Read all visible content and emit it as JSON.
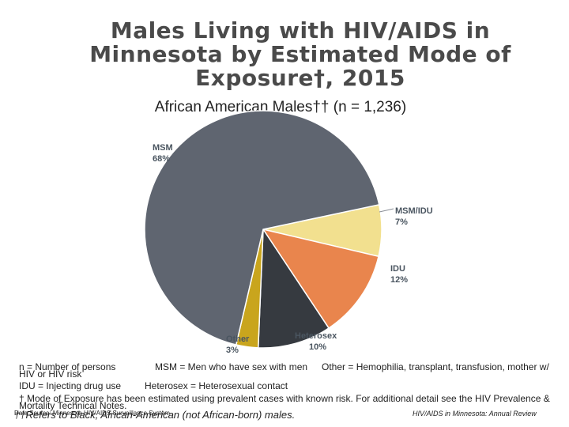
{
  "title": "Males Living with HIV/AIDS in Minnesota by Estimated Mode of Exposure†, 2015",
  "chart_data": {
    "type": "pie",
    "title": "African American Males†† (n = 1,236)",
    "slices": [
      {
        "label": "MSM",
        "value": 68,
        "display": "68%",
        "color": "#5f6570"
      },
      {
        "label": "MSM/IDU",
        "value": 7,
        "display": "7%",
        "color": "#f2e08f"
      },
      {
        "label": "IDU",
        "value": 12,
        "display": "12%",
        "color": "#e9854d"
      },
      {
        "label": "Heterosex",
        "value": 10,
        "display": "10%",
        "color": "#363a40"
      },
      {
        "label": "Other",
        "value": 3,
        "display": "3%",
        "color": "#c9a51d"
      }
    ]
  },
  "notes": {
    "n_def": "n = Number of persons",
    "msm_def": "MSM = Men who have sex with men",
    "other_def": "Other = Hemophilia, transplant, transfusion, mother w/",
    "other_def_cont": "HIV or HIV risk",
    "idu_def": "IDU = Injecting drug use",
    "hetero_def": "Heterosex = Heterosexual contact",
    "dagger_note": "† Mode of Exposure has been estimated using prevalent cases with known risk. For additional detail see the HIV Prevalence &",
    "dagger_note_cont": "Mortality Technical Notes.",
    "data_source": "Data Source: Minnesota HIV/AIDS Surveillance System",
    "double_dagger_note": "††Refers to Black, African-American (not African-born) males.",
    "report_name": "HIV/AIDS in Minnesota: Annual Review"
  }
}
